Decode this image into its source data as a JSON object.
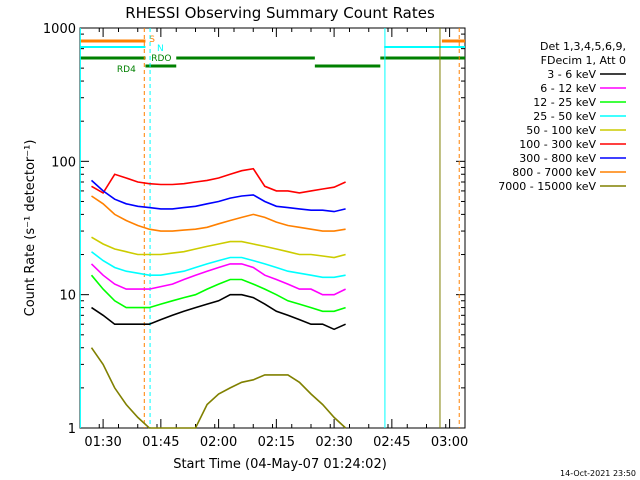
{
  "chart_data": {
    "type": "line",
    "title": "RHESSI Observing Summary Count Rates",
    "xlabel": "Start Time (04-May-07 01:24:02)",
    "ylabel": "Count Rate (s⁻¹ detector⁻¹)",
    "yscale": "log",
    "ylim": [
      1,
      1000
    ],
    "xlim_minutes": [
      84,
      184
    ],
    "x_tick_labels": [
      "01:30",
      "01:45",
      "02:00",
      "02:15",
      "02:30",
      "02:45",
      "03:00"
    ],
    "x_tick_minutes": [
      90,
      105,
      120,
      135,
      150,
      165,
      180
    ],
    "y_tick_labels": [
      "1",
      "10",
      "100",
      "1000"
    ],
    "y_tick_values": [
      1,
      10,
      100,
      1000
    ],
    "grid": false,
    "legend": {
      "placement": "right",
      "header": [
        "Det 1,3,4,5,6,9,",
        "FDecim 1, Att 0"
      ]
    },
    "series": [
      {
        "name": "3 - 6 keV",
        "color": "#000000",
        "values": [
          8,
          7,
          6,
          6,
          6,
          6,
          6.5,
          7,
          7.5,
          8,
          8.5,
          9,
          10,
          10,
          9.5,
          8.5,
          7.5,
          7,
          6.5,
          6,
          6,
          5.5,
          6
        ]
      },
      {
        "name": "6 - 12 keV",
        "color": "#ff00ff",
        "values": [
          17,
          14,
          12,
          11,
          11,
          11,
          11.5,
          12,
          13,
          14,
          15,
          16,
          17,
          17,
          16,
          14,
          13,
          12,
          11,
          11,
          10,
          10,
          11
        ]
      },
      {
        "name": "12 - 25 keV",
        "color": "#00ff00",
        "values": [
          14,
          11,
          9,
          8,
          8,
          8,
          8.5,
          9,
          9.5,
          10,
          11,
          12,
          13,
          13,
          12,
          11,
          10,
          9,
          8.5,
          8,
          7.5,
          7.5,
          8
        ]
      },
      {
        "name": "25 - 50 keV",
        "color": "#00ffff",
        "values": [
          21,
          18,
          16,
          15,
          14.5,
          14,
          14,
          14.5,
          15,
          16,
          17,
          18,
          19,
          19,
          18,
          17,
          16,
          15,
          14.5,
          14,
          13.5,
          13.5,
          14
        ]
      },
      {
        "name": "50 - 100 keV",
        "color": "#cccc00",
        "values": [
          27,
          24,
          22,
          21,
          20,
          20,
          20,
          20.5,
          21,
          22,
          23,
          24,
          25,
          25,
          24,
          23,
          22,
          21,
          20,
          20,
          19.5,
          19,
          20
        ]
      },
      {
        "name": "100 - 300 keV",
        "color": "#ff0000",
        "values": [
          65,
          58,
          80,
          75,
          70,
          68,
          67,
          67,
          68,
          70,
          72,
          75,
          80,
          85,
          88,
          65,
          60,
          60,
          58,
          60,
          62,
          64,
          70
        ]
      },
      {
        "name": "300 - 800 keV",
        "color": "#0000ff",
        "values": [
          72,
          60,
          52,
          48,
          46,
          45,
          44,
          44,
          45,
          46,
          48,
          50,
          53,
          55,
          56,
          50,
          46,
          45,
          44,
          43,
          43,
          42,
          44
        ]
      },
      {
        "name": "800 - 7000 keV",
        "color": "#ff8000",
        "values": [
          55,
          48,
          40,
          36,
          33,
          31,
          30,
          30,
          30.5,
          31,
          32,
          34,
          36,
          38,
          40,
          38,
          35,
          33,
          32,
          31,
          30,
          30,
          31
        ]
      },
      {
        "name": "7000 - 15000 keV",
        "color": "#808000",
        "values": [
          4,
          3,
          2,
          1.5,
          1.2,
          1,
          1,
          1,
          1,
          1,
          1.5,
          1.8,
          2,
          2.2,
          2.3,
          2.5,
          2.5,
          2.5,
          2.2,
          1.8,
          1.5,
          1.2,
          1
        ]
      }
    ],
    "series_x_minutes": [
      87,
      90,
      93,
      96,
      99,
      102,
      105,
      108,
      111,
      114,
      117,
      120,
      123,
      126,
      129,
      132,
      135,
      138,
      141,
      144,
      147,
      150,
      153
    ],
    "flags": [
      {
        "label": "S",
        "color": "#ff8000"
      },
      {
        "label": "N",
        "color": "#00ffff"
      },
      {
        "label": "RDO",
        "color": "#008000"
      },
      {
        "label": "RD4",
        "color": "#008000"
      }
    ],
    "timestamp": "14-Oct-2021 23:50"
  }
}
